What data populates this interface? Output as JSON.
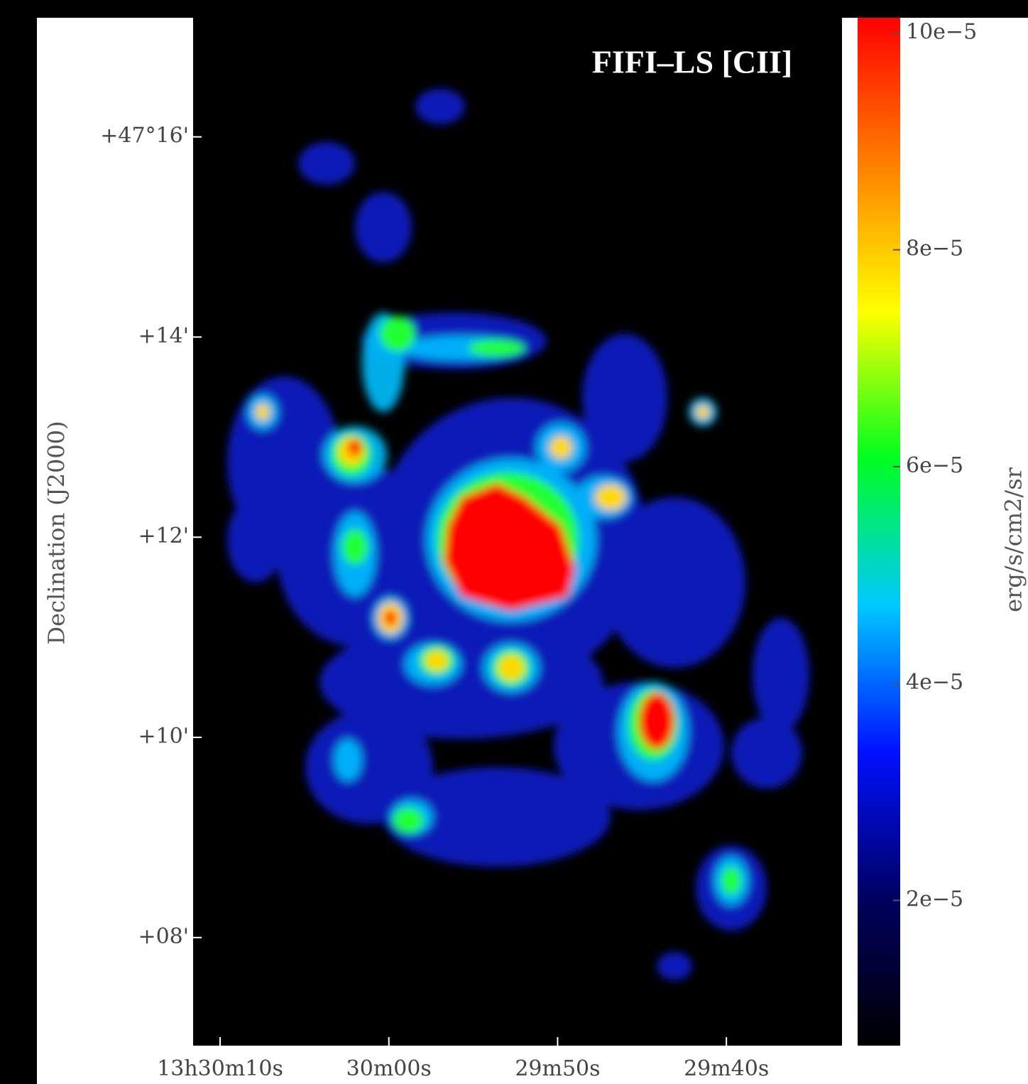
{
  "chart_data": {
    "type": "heatmap",
    "title": "FIFI–LS [CII]",
    "y_label": "Declination (J2000)",
    "colorbar_label": "erg/s/cm2/sr",
    "xlim": [
      71.6,
      33.15
    ],
    "xticks": [
      {
        "value": 70,
        "label": "13h30m10s"
      },
      {
        "value": 60,
        "label": "30m00s"
      },
      {
        "value": 50,
        "label": "29m50s"
      },
      {
        "value": 40,
        "label": "29m40s"
      }
    ],
    "ylim": [
      6.92,
      17.19
    ],
    "yticks": [
      {
        "value": 16,
        "label": "+47°16'"
      },
      {
        "value": 14,
        "label": "+14'"
      },
      {
        "value": 12,
        "label": "+12'"
      },
      {
        "value": 10,
        "label": "+10'"
      },
      {
        "value": 8,
        "label": "+08'"
      }
    ],
    "clim": [
      6.6e-06,
      0.0001014
    ],
    "cticks": [
      {
        "value": 2e-05,
        "label": "2e−5"
      },
      {
        "value": 4e-05,
        "label": "4e−5"
      },
      {
        "value": 6e-05,
        "label": "6e−5"
      },
      {
        "value": 8e-05,
        "label": "8e−5"
      },
      {
        "value": 0.0001,
        "label": "10e−5"
      }
    ],
    "colormap": [
      "#000000",
      "#000060",
      "#0010ff",
      "#00c8ff",
      "#00ff20",
      "#ffff00",
      "#ff8000",
      "#ff0000"
    ]
  }
}
